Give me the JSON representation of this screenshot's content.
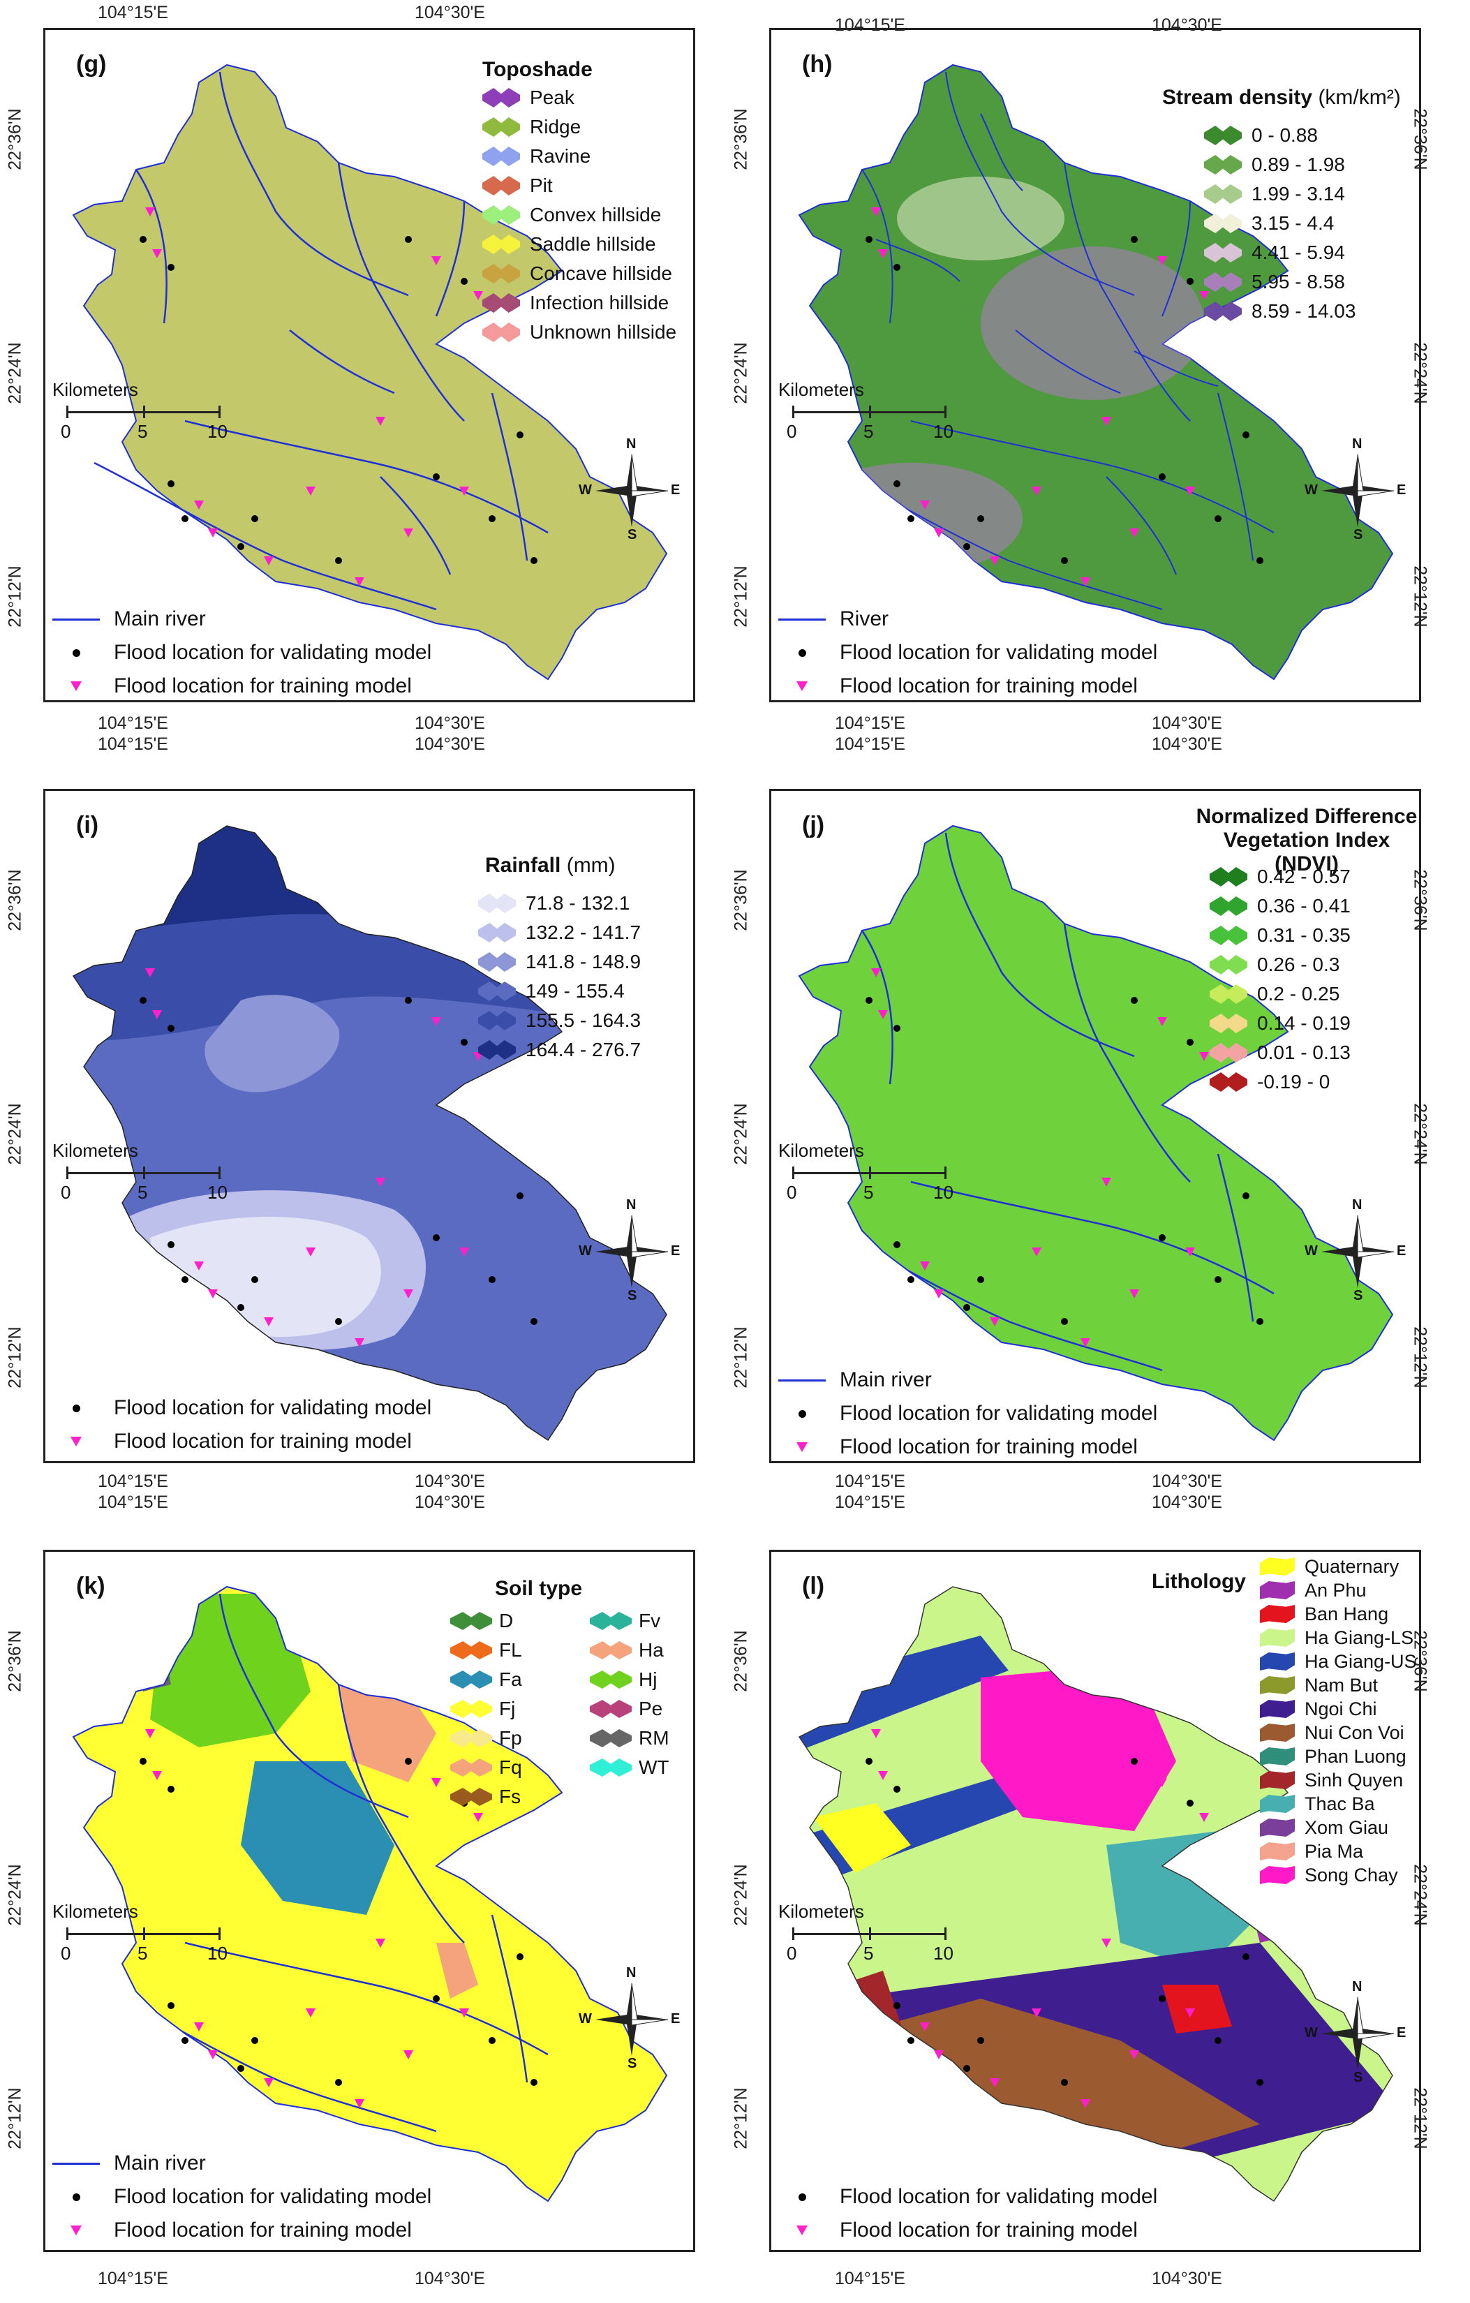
{
  "common": {
    "scale_title": "Kilometers",
    "scale_ticks": [
      "0",
      "5",
      "10"
    ],
    "north": "N",
    "south": "S",
    "west": "W",
    "east": "E",
    "validating": "Flood location for validating model",
    "training": "Flood location for training model",
    "main_river": "Main river",
    "river": "River",
    "lon_1": "104°15'E",
    "lon_2": "104°30'E",
    "lat_1": "22°36'N",
    "lat_2": "22°24'N",
    "lat_3": "22°12'N"
  },
  "colors": {
    "river": "#1f2fd6",
    "training": "#ff1fcb",
    "validating": "#000000"
  },
  "panel_g": {
    "label": "(g)",
    "legend_title": "Toposhade",
    "items": [
      {
        "label": "Peak",
        "color": "#8e3fb8"
      },
      {
        "label": "Ridge",
        "color": "#8fba3d"
      },
      {
        "label": "Ravine",
        "color": "#8ea2ef"
      },
      {
        "label": "Pit",
        "color": "#d76a4d"
      },
      {
        "label": "Convex hillside",
        "color": "#9bef7a"
      },
      {
        "label": "Saddle hillside",
        "color": "#f4f23a"
      },
      {
        "label": "Concave hillside",
        "color": "#c9a33f"
      },
      {
        "label": "Infection hillside",
        "color": "#a64b73"
      },
      {
        "label": "Unknown hillside",
        "color": "#f59a9a"
      }
    ],
    "map_fill": "#c3c86a"
  },
  "panel_h": {
    "label": "(h)",
    "legend_title": "Stream density",
    "legend_unit": "(km/km²)",
    "items": [
      {
        "label": "0 - 0.88",
        "color": "#3c8a2e"
      },
      {
        "label": "0.89 - 1.98",
        "color": "#67a84c"
      },
      {
        "label": "1.99 - 3.14",
        "color": "#a6cb8a"
      },
      {
        "label": "3.15 - 4.4",
        "color": "#f1f0d8"
      },
      {
        "label": "4.41 - 5.94",
        "color": "#d9c3d6"
      },
      {
        "label": "5.95 - 8.58",
        "color": "#a97fb9"
      },
      {
        "label": "8.59 - 14.03",
        "color": "#6a4aa2"
      }
    ],
    "map_fill": "#4f9a3f"
  },
  "panel_i": {
    "label": "(i)",
    "legend_title": "Rainfall",
    "legend_unit": "(mm)",
    "items": [
      {
        "label": "71.8 - 132.1",
        "color": "#e4e4f7"
      },
      {
        "label": "132.2 - 141.7",
        "color": "#bcc0ea"
      },
      {
        "label": "141.8 - 148.9",
        "color": "#8d97d7"
      },
      {
        "label": "149 - 155.4",
        "color": "#5b6bc2"
      },
      {
        "label": "155.5 - 164.3",
        "color": "#3a4da9"
      },
      {
        "label": "164.4 - 276.7",
        "color": "#1d3086"
      }
    ]
  },
  "panel_j": {
    "label": "(j)",
    "legend_title_1": "Normalized Difference",
    "legend_title_2": "Vegetation Index (NDVI)",
    "items": [
      {
        "label": "0.42 - 0.57",
        "color": "#1f7f1f"
      },
      {
        "label": "0.36 - 0.41",
        "color": "#2fa42f"
      },
      {
        "label": "0.31 - 0.35",
        "color": "#48c23a"
      },
      {
        "label": "0.26 - 0.3",
        "color": "#7fdd4f"
      },
      {
        "label": "0.2 - 0.25",
        "color": "#c7ec5b"
      },
      {
        "label": "0.14 - 0.19",
        "color": "#f4d98a"
      },
      {
        "label": "0.01 - 0.13",
        "color": "#f4a3a3"
      },
      {
        "label": "-0.19 - 0",
        "color": "#b11e1e"
      }
    ],
    "map_fill": "#6fd23c"
  },
  "panel_k": {
    "label": "(k)",
    "legend_title": "Soil type",
    "items": [
      {
        "label": "D",
        "color": "#3f8f3a"
      },
      {
        "label": "Fv",
        "color": "#2ab39a"
      },
      {
        "label": "FL",
        "color": "#f06a1c"
      },
      {
        "label": "Ha",
        "color": "#f4a37c"
      },
      {
        "label": "Fa",
        "color": "#2b8fb3"
      },
      {
        "label": "Hj",
        "color": "#6fd21c"
      },
      {
        "label": "Fj",
        "color": "#ffff33"
      },
      {
        "label": "Pe",
        "color": "#b8417a"
      },
      {
        "label": "Fp",
        "color": "#f7e98c"
      },
      {
        "label": "RM",
        "color": "#666666"
      },
      {
        "label": "Fq",
        "color": "#f4a37c"
      },
      {
        "label": "WT",
        "color": "#2ff0d6"
      },
      {
        "label": "Fs",
        "color": "#9a5b1e"
      }
    ]
  },
  "panel_l": {
    "label": "(l)",
    "legend_title": "Lithology",
    "items": [
      {
        "label": "Quaternary",
        "color": "#ffff22"
      },
      {
        "label": "An Phu",
        "color": "#a02fb0"
      },
      {
        "label": "Ban Hang",
        "color": "#e3141e"
      },
      {
        "label": "Ha Giang-LS",
        "color": "#c9f58b"
      },
      {
        "label": "Ha Giang-US",
        "color": "#2747b0"
      },
      {
        "label": "Nam But",
        "color": "#8b9a2a"
      },
      {
        "label": "Ngoi Chi",
        "color": "#3f1f8f"
      },
      {
        "label": "Nui Con Voi",
        "color": "#9b5a2f"
      },
      {
        "label": "Phan Luong",
        "color": "#2f8f7a"
      },
      {
        "label": "Sinh Quyen",
        "color": "#a3262a"
      },
      {
        "label": "Thac Ba",
        "color": "#47afb0"
      },
      {
        "label": "Xom Giau",
        "color": "#7a3f9a"
      },
      {
        "label": "Pia Ma",
        "color": "#f4a38f"
      },
      {
        "label": "Song Chay",
        "color": "#ff19c7"
      }
    ]
  }
}
